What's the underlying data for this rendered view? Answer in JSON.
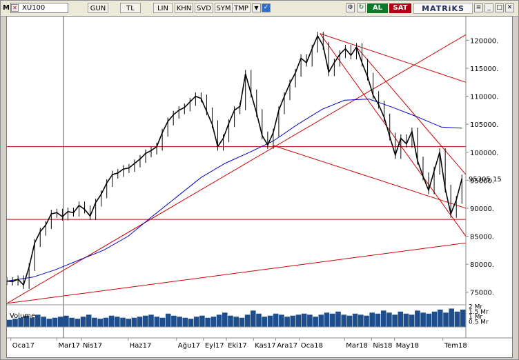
{
  "toolbar": {
    "m_label": "M",
    "symbol": "XU100",
    "buttons": [
      "GUN",
      "TL",
      "LIN",
      "KHN",
      "SVD",
      "SYM",
      "TMP"
    ],
    "buy_label": "AL",
    "sell_label": "SAT",
    "brand": "MATRiKS",
    "colors": {
      "buy": "#0a7a2a",
      "sell": "#b00018",
      "brand": "#1f2e5c"
    }
  },
  "chart_data": {
    "type": "line",
    "subtype": "candlestick-price-with-volume",
    "symbol": "XU100",
    "x_tick_labels": [
      "Oca17",
      "Mar17",
      "Nis17",
      "Haz17",
      "Ağu17",
      "Eyl17",
      "Eki17",
      "Kas17",
      "Ara17",
      "Oca18",
      "Mar18",
      "Nis18",
      "May18",
      "Tem18"
    ],
    "y_ticks": [
      75000,
      80000,
      85000,
      90000,
      95000,
      100000,
      105000,
      110000,
      115000,
      120000
    ],
    "y_tick_labels": [
      "75000.",
      "80000.",
      "85000.",
      "90000.",
      "95000.",
      "100000.",
      "105000.",
      "110000.",
      "115000.",
      "120000."
    ],
    "ylim": [
      72500,
      123500
    ],
    "last_value_label": "95305.15",
    "last_value": 95305.15,
    "price_color": "#000000",
    "ma_color": "#0000cc",
    "trendline_color": "#cc0000",
    "price_series": [
      [
        "2016-12-30",
        77000
      ],
      [
        "2017-01-06",
        76900
      ],
      [
        "2017-01-13",
        77300
      ],
      [
        "2017-01-20",
        76300
      ],
      [
        "2017-01-27",
        79500
      ],
      [
        "2017-02-03",
        83800
      ],
      [
        "2017-02-10",
        85800
      ],
      [
        "2017-02-17",
        87000
      ],
      [
        "2017-02-24",
        89000
      ],
      [
        "2017-03-03",
        89200
      ],
      [
        "2017-03-10",
        88500
      ],
      [
        "2017-03-17",
        89400
      ],
      [
        "2017-03-24",
        89200
      ],
      [
        "2017-03-31",
        90500
      ],
      [
        "2017-04-07",
        89800
      ],
      [
        "2017-04-14",
        88600
      ],
      [
        "2017-04-21",
        91000
      ],
      [
        "2017-04-28",
        92500
      ],
      [
        "2017-05-05",
        94500
      ],
      [
        "2017-05-12",
        96000
      ],
      [
        "2017-05-19",
        96300
      ],
      [
        "2017-05-26",
        97000
      ],
      [
        "2017-06-02",
        97200
      ],
      [
        "2017-06-09",
        98000
      ],
      [
        "2017-06-16",
        98800
      ],
      [
        "2017-06-23",
        99800
      ],
      [
        "2017-06-30",
        100300
      ],
      [
        "2017-07-07",
        101000
      ],
      [
        "2017-07-14",
        103500
      ],
      [
        "2017-07-21",
        105500
      ],
      [
        "2017-07-28",
        106700
      ],
      [
        "2017-08-04",
        107500
      ],
      [
        "2017-08-11",
        108000
      ],
      [
        "2017-08-18",
        109000
      ],
      [
        "2017-08-25",
        110000
      ],
      [
        "2017-09-01",
        109600
      ],
      [
        "2017-09-08",
        107300
      ],
      [
        "2017-09-15",
        105000
      ],
      [
        "2017-09-22",
        101000
      ],
      [
        "2017-09-29",
        102500
      ],
      [
        "2017-10-06",
        105200
      ],
      [
        "2017-10-13",
        107500
      ],
      [
        "2017-10-20",
        108200
      ],
      [
        "2017-10-27",
        114000
      ],
      [
        "2017-11-03",
        110500
      ],
      [
        "2017-11-10",
        107000
      ],
      [
        "2017-11-17",
        103000
      ],
      [
        "2017-11-24",
        101300
      ],
      [
        "2017-12-01",
        103500
      ],
      [
        "2017-12-08",
        107500
      ],
      [
        "2017-12-15",
        110000
      ],
      [
        "2017-12-22",
        112300
      ],
      [
        "2017-12-29",
        114200
      ],
      [
        "2018-01-05",
        116800
      ],
      [
        "2018-01-12",
        116000
      ],
      [
        "2018-01-19",
        118500
      ],
      [
        "2018-01-26",
        120800
      ],
      [
        "2018-02-02",
        119000
      ],
      [
        "2018-02-09",
        114300
      ],
      [
        "2018-02-16",
        116000
      ],
      [
        "2018-02-23",
        117500
      ],
      [
        "2018-03-02",
        118500
      ],
      [
        "2018-03-09",
        117300
      ],
      [
        "2018-03-16",
        118800
      ],
      [
        "2018-03-23",
        116000
      ],
      [
        "2018-03-30",
        113500
      ],
      [
        "2018-04-06",
        110200
      ],
      [
        "2018-04-13",
        108500
      ],
      [
        "2018-04-20",
        106200
      ],
      [
        "2018-04-27",
        102800
      ],
      [
        "2018-05-04",
        99500
      ],
      [
        "2018-05-11",
        102500
      ],
      [
        "2018-05-18",
        101500
      ],
      [
        "2018-05-25",
        103700
      ],
      [
        "2018-06-01",
        98500
      ],
      [
        "2018-06-08",
        95700
      ],
      [
        "2018-06-15",
        93200
      ],
      [
        "2018-06-22",
        96700
      ],
      [
        "2018-06-29",
        100000
      ],
      [
        "2018-07-06",
        93500
      ],
      [
        "2018-07-13",
        89000
      ],
      [
        "2018-07-20",
        91500
      ],
      [
        "2018-07-27",
        95305.15
      ]
    ],
    "moving_average": [
      [
        "2016-12-30",
        77000
      ],
      [
        "2017-02-01",
        77700
      ],
      [
        "2017-03-01",
        79000
      ],
      [
        "2017-04-01",
        80800
      ],
      [
        "2017-05-01",
        82500
      ],
      [
        "2017-06-01",
        85000
      ],
      [
        "2017-07-01",
        88500
      ],
      [
        "2017-08-01",
        92000
      ],
      [
        "2017-09-01",
        95500
      ],
      [
        "2017-10-01",
        98000
      ],
      [
        "2017-11-01",
        100000
      ],
      [
        "2017-12-01",
        102000
      ],
      [
        "2018-01-01",
        105000
      ],
      [
        "2018-02-01",
        107700
      ],
      [
        "2018-03-01",
        109300
      ],
      [
        "2018-04-01",
        109500
      ],
      [
        "2018-05-01",
        108000
      ],
      [
        "2018-06-01",
        106300
      ],
      [
        "2018-07-01",
        104500
      ],
      [
        "2018-07-27",
        104300
      ]
    ],
    "horizontal_lines": [
      101000,
      88000
    ],
    "trend_lines": [
      {
        "from": [
          "2016-12-30",
          73000
        ],
        "to": [
          "2018-08-01",
          121000
        ]
      },
      {
        "from": [
          "2016-12-30",
          73000
        ],
        "to": [
          "2018-08-01",
          83800
        ]
      },
      {
        "from": [
          "2017-12-01",
          101200
        ],
        "to": [
          "2018-08-01",
          90000
        ]
      },
      {
        "from": [
          "2018-01-29",
          121200
        ],
        "to": [
          "2018-08-01",
          112500
        ]
      },
      {
        "from": [
          "2018-01-29",
          121200
        ],
        "to": [
          "2018-08-01",
          85000
        ]
      },
      {
        "from": [
          "2018-03-16",
          118800
        ],
        "to": [
          "2018-08-01",
          96000
        ]
      }
    ],
    "volume": {
      "label": "Volume",
      "tick_labels": [
        "2 Mr",
        "1.5 Mr",
        "1 Mr",
        "0.5 Mr"
      ],
      "ticks": [
        2.0,
        1.5,
        1.0,
        0.5
      ],
      "unit": "Mr",
      "ylim": [
        0,
        2.3
      ],
      "color": "#1e4f8c",
      "values": [
        0.7,
        0.8,
        0.9,
        1.1,
        0.9,
        1.2,
        1.0,
        0.8,
        0.9,
        1.0,
        1.1,
        0.9,
        0.8,
        1.0,
        1.2,
        0.9,
        0.8,
        0.9,
        1.1,
        1.0,
        0.9,
        0.8,
        0.9,
        1.0,
        1.1,
        1.2,
        1.0,
        0.9,
        1.3,
        1.1,
        1.0,
        0.9,
        0.8,
        1.0,
        1.1,
        0.9,
        1.0,
        1.2,
        1.4,
        1.1,
        1.0,
        0.9,
        1.2,
        1.6,
        1.3,
        1.0,
        1.1,
        1.3,
        1.2,
        1.0,
        1.1,
        1.2,
        1.3,
        1.2,
        1.0,
        1.2,
        1.4,
        1.3,
        1.5,
        1.2,
        1.1,
        1.3,
        1.2,
        1.1,
        1.4,
        1.3,
        1.6,
        1.4,
        1.2,
        1.5,
        1.3,
        1.2,
        1.6,
        1.4,
        1.3,
        1.5,
        1.7,
        1.4,
        1.8,
        1.5,
        1.7
      ]
    },
    "grid": false,
    "legend": "none"
  }
}
